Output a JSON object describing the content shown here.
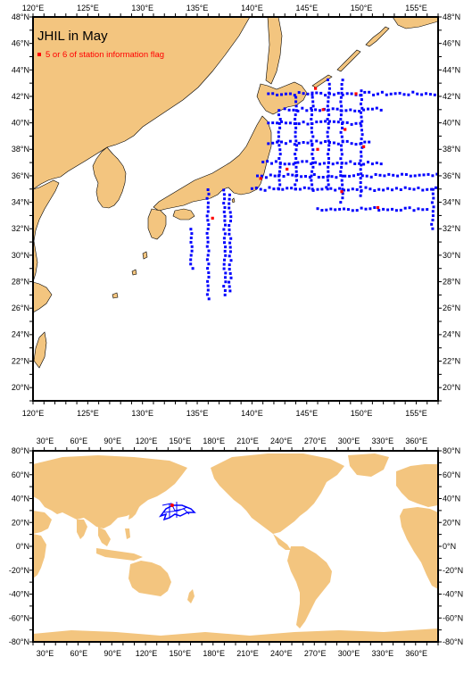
{
  "colors": {
    "land": "#f3c57f",
    "ocean": "#ffffff",
    "station": "#0000ff",
    "flagged": "#ff0000",
    "frame": "#000000"
  },
  "top_map": {
    "title": "JHIL in May",
    "legend_label": "5 or 6 of station information flag",
    "lon_ticks": [
      "120°E",
      "125°E",
      "130°E",
      "135°E",
      "140°E",
      "145°E",
      "150°E",
      "155°E"
    ],
    "lat_ticks": [
      "20°N",
      "22°N",
      "24°N",
      "26°N",
      "28°N",
      "30°N",
      "32°N",
      "34°N",
      "36°N",
      "38°N",
      "40°N",
      "42°N",
      "44°N",
      "46°N",
      "48°N"
    ]
  },
  "bottom_map": {
    "lon_ticks": [
      "30°E",
      "60°E",
      "90°E",
      "120°E",
      "150°E",
      "180°E",
      "210°E",
      "240°E",
      "270°E",
      "300°E",
      "330°E",
      "360°E"
    ],
    "lat_ticks": [
      "-80°N",
      "-60°N",
      "-40°N",
      "-20°N",
      "0°N",
      "20°N",
      "40°N",
      "60°N",
      "80°N"
    ]
  },
  "chart_data": {
    "type": "scatter",
    "region": {
      "lon_range": [
        120,
        157
      ],
      "lat_range": [
        19,
        48
      ]
    },
    "series": [
      {
        "name": "",
        "transects": [
          {
            "lon_range": [
              141.5,
              157
            ],
            "lat": 42.2
          },
          {
            "lon_range": [
              143,
              152
            ],
            "lat": 41.0
          },
          {
            "lon_range": [
              141.5,
              150
            ],
            "lat": 40.0
          },
          {
            "lon_range": [
              141.5,
              151
            ],
            "lat": 38.5
          },
          {
            "lon_range": [
              141,
              152
            ],
            "lat": 37.0
          },
          {
            "lon_range": [
              140.5,
              157
            ],
            "lat": 36.0
          },
          {
            "lon_range": [
              140,
              157
            ],
            "lat": 35.0
          },
          {
            "lon_range": [
              146,
              156
            ],
            "lat": 33.5
          },
          {
            "lon": 142.5,
            "lat_range": [
              35,
              41
            ]
          },
          {
            "lon": 144.0,
            "lat_range": [
              35,
              42
            ]
          },
          {
            "lon": 145.5,
            "lat_range": [
              35,
              42.5
            ]
          },
          {
            "lon": 147.0,
            "lat_range": [
              35,
              43.5
            ]
          },
          {
            "lon": 148.2,
            "lat_range": [
              34,
              43.5
            ]
          },
          {
            "lon": 150.0,
            "lat_range": [
              34.5,
              42.5
            ]
          },
          {
            "lon": 136.0,
            "lat_range": [
              26.7,
              35.0
            ]
          },
          {
            "lon": 137.5,
            "lat_range": [
              27.0,
              35.0
            ]
          },
          {
            "lon": 138.0,
            "lat_range": [
              27.3,
              34.8
            ]
          },
          {
            "lon": 134.5,
            "lat_range": [
              29,
              32
            ]
          },
          {
            "lon": 156.5,
            "lat_range": [
              32,
              35
            ]
          }
        ]
      },
      {
        "name": "5 or 6 of station information flag",
        "points": [
          [
            149.5,
            42.2
          ],
          [
            145.8,
            42.6
          ],
          [
            146.5,
            41.0
          ],
          [
            148.5,
            39.5
          ],
          [
            150.2,
            38.2
          ],
          [
            146.0,
            38.0
          ],
          [
            143.2,
            36.5
          ],
          [
            140.8,
            35.8
          ],
          [
            148.2,
            34.8
          ],
          [
            151.5,
            33.6
          ],
          [
            136.4,
            32.8
          ]
        ]
      }
    ]
  }
}
